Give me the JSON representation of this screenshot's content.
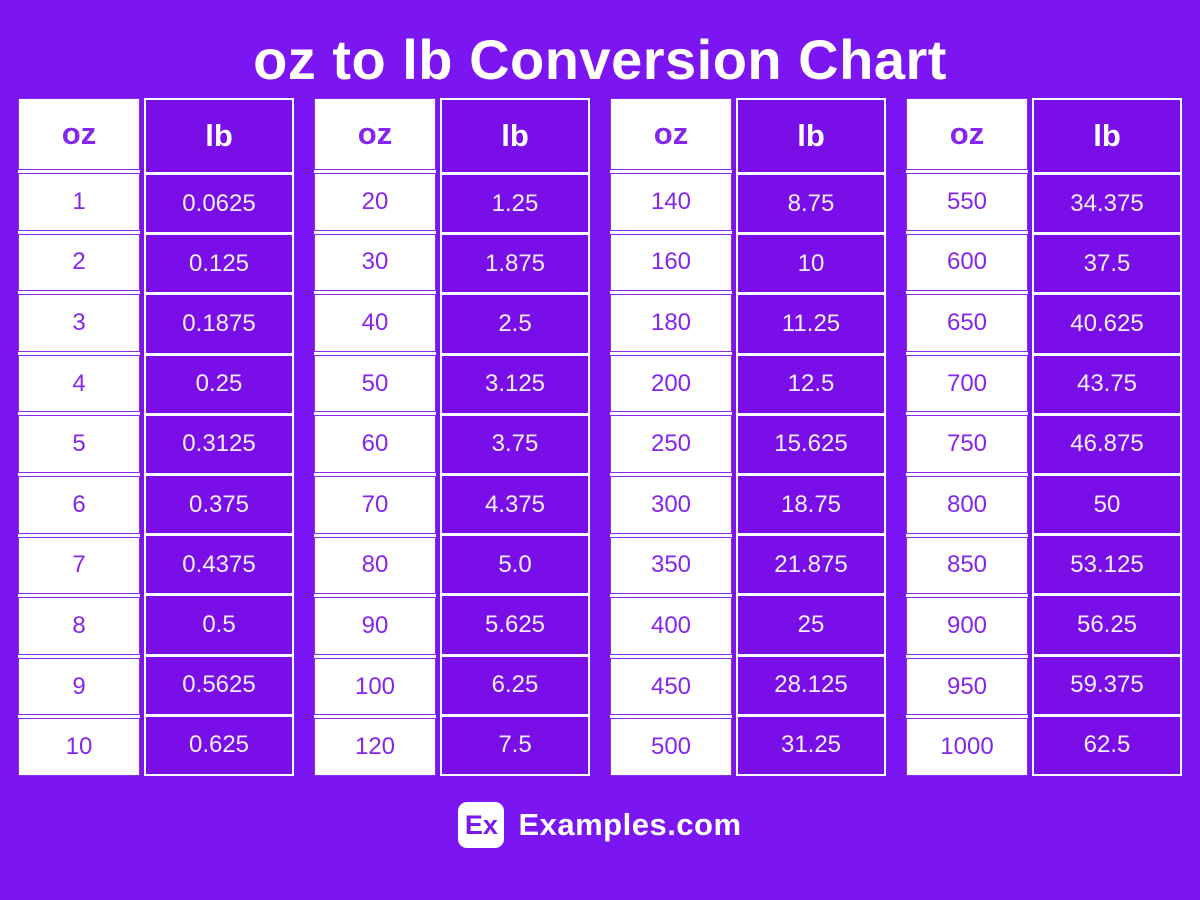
{
  "title": "oz to lb Conversion Chart",
  "colors": {
    "page-bg": "#7B15F2",
    "cell-purple": "#7A0EE8",
    "white": "#FFFFFF",
    "oz-text": "#8526EC",
    "lb-text": "#F4EFFB",
    "oz-border": "#8A2BE9",
    "title-text": "#FFFFFF",
    "logo-text": "#7B15F2"
  },
  "column_headers": {
    "oz": "oz",
    "lb": "lb"
  },
  "tables": [
    {
      "rows": [
        [
          "1",
          "0.0625"
        ],
        [
          "2",
          "0.125"
        ],
        [
          "3",
          "0.1875"
        ],
        [
          "4",
          "0.25"
        ],
        [
          "5",
          "0.3125"
        ],
        [
          "6",
          "0.375"
        ],
        [
          "7",
          "0.4375"
        ],
        [
          "8",
          "0.5"
        ],
        [
          "9",
          "0.5625"
        ],
        [
          "10",
          "0.625"
        ]
      ]
    },
    {
      "rows": [
        [
          "20",
          "1.25"
        ],
        [
          "30",
          "1.875"
        ],
        [
          "40",
          "2.5"
        ],
        [
          "50",
          "3.125"
        ],
        [
          "60",
          "3.75"
        ],
        [
          "70",
          "4.375"
        ],
        [
          "80",
          "5.0"
        ],
        [
          "90",
          "5.625"
        ],
        [
          "100",
          "6.25"
        ],
        [
          "120",
          "7.5"
        ]
      ]
    },
    {
      "rows": [
        [
          "140",
          "8.75"
        ],
        [
          "160",
          "10"
        ],
        [
          "180",
          "11.25"
        ],
        [
          "200",
          "12.5"
        ],
        [
          "250",
          "15.625"
        ],
        [
          "300",
          "18.75"
        ],
        [
          "350",
          "21.875"
        ],
        [
          "400",
          "25"
        ],
        [
          "450",
          "28.125"
        ],
        [
          "500",
          "31.25"
        ]
      ]
    },
    {
      "rows": [
        [
          "550",
          "34.375"
        ],
        [
          "600",
          "37.5"
        ],
        [
          "650",
          "40.625"
        ],
        [
          "700",
          "43.75"
        ],
        [
          "750",
          "46.875"
        ],
        [
          "800",
          "50"
        ],
        [
          "850",
          "53.125"
        ],
        [
          "900",
          "56.25"
        ],
        [
          "950",
          "59.375"
        ],
        [
          "1000",
          "62.5"
        ]
      ]
    }
  ],
  "footer": {
    "logo_text": "Ex",
    "site_name": "Examples.com"
  },
  "chart_data": {
    "type": "table",
    "title": "oz to lb Conversion Chart",
    "columns": [
      "oz",
      "lb"
    ],
    "rows": [
      [
        1,
        0.0625
      ],
      [
        2,
        0.125
      ],
      [
        3,
        0.1875
      ],
      [
        4,
        0.25
      ],
      [
        5,
        0.3125
      ],
      [
        6,
        0.375
      ],
      [
        7,
        0.4375
      ],
      [
        8,
        0.5
      ],
      [
        9,
        0.5625
      ],
      [
        10,
        0.625
      ],
      [
        20,
        1.25
      ],
      [
        30,
        1.875
      ],
      [
        40,
        2.5
      ],
      [
        50,
        3.125
      ],
      [
        60,
        3.75
      ],
      [
        70,
        4.375
      ],
      [
        80,
        5.0
      ],
      [
        90,
        5.625
      ],
      [
        100,
        6.25
      ],
      [
        120,
        7.5
      ],
      [
        140,
        8.75
      ],
      [
        160,
        10
      ],
      [
        180,
        11.25
      ],
      [
        200,
        12.5
      ],
      [
        250,
        15.625
      ],
      [
        300,
        18.75
      ],
      [
        350,
        21.875
      ],
      [
        400,
        25
      ],
      [
        450,
        28.125
      ],
      [
        500,
        31.25
      ],
      [
        550,
        34.375
      ],
      [
        600,
        37.5
      ],
      [
        650,
        40.625
      ],
      [
        700,
        43.75
      ],
      [
        750,
        46.875
      ],
      [
        800,
        50
      ],
      [
        850,
        53.125
      ],
      [
        900,
        56.25
      ],
      [
        950,
        59.375
      ],
      [
        1000,
        62.5
      ]
    ]
  }
}
